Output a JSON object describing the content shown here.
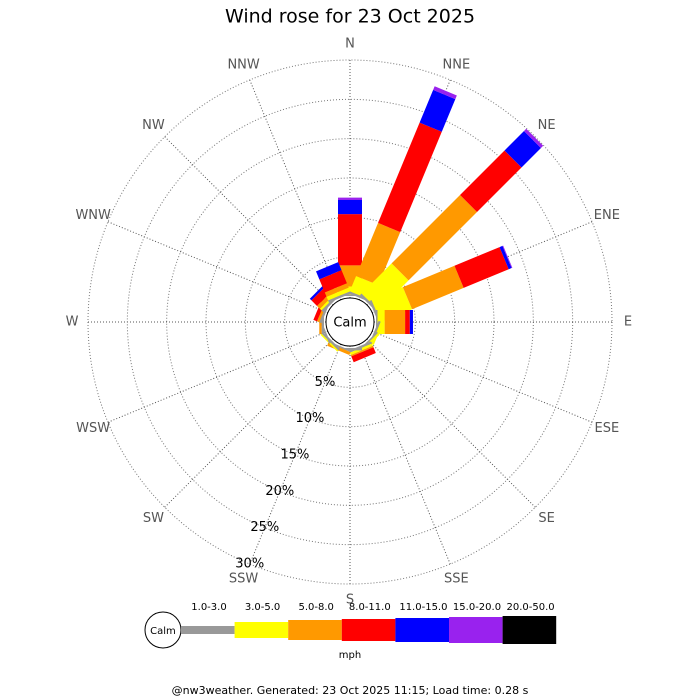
{
  "chart_data": {
    "type": "wind_rose",
    "title": "Wind rose for 23 Oct 2025",
    "categories": [
      "N",
      "NNE",
      "NE",
      "ENE",
      "E",
      "ESE",
      "SE",
      "SSE",
      "S",
      "SSW",
      "SW",
      "WSW",
      "W",
      "WNW",
      "NW",
      "NNW"
    ],
    "center_label": "Calm",
    "rlim": [
      0,
      30
    ],
    "rticks": [
      {
        "value": 5,
        "label": "5%"
      },
      {
        "value": 10,
        "label": "10%"
      },
      {
        "value": 15,
        "label": "15%"
      },
      {
        "value": 20,
        "label": "20%"
      },
      {
        "value": 25,
        "label": "25%"
      },
      {
        "value": 30,
        "label": "30%"
      }
    ],
    "series": [
      {
        "name": "1.0-3.0",
        "color": "#999999",
        "values": [
          0.2,
          0.3,
          0.3,
          0.3,
          0.2,
          0.3,
          0.2,
          0.3,
          0.3,
          0.2,
          0.3,
          0.2,
          0.3,
          0.3,
          0.3,
          0.3
        ]
      },
      {
        "name": "3.0-5.0",
        "color": "#ffff00",
        "values": [
          1.0,
          2.1,
          5.4,
          4.3,
          0.9,
          0.3,
          0.3,
          0.3,
          0,
          0,
          0.2,
          0,
          0,
          0,
          0.3,
          0.5
        ]
      },
      {
        "name": "5.0-8.0",
        "color": "#ff9900",
        "values": [
          2.7,
          7.3,
          12.3,
          7.1,
          2.6,
          0,
          0,
          0.2,
          0,
          0.4,
          0,
          0,
          0.3,
          0.3,
          0.5,
          0.6
        ]
      },
      {
        "name": "8.0-11.0",
        "color": "#ff0000",
        "values": [
          6.5,
          13.8,
          8.0,
          6.2,
          0.6,
          0,
          0,
          0.8,
          0,
          0,
          0,
          0,
          0,
          0.5,
          1.0,
          1.8
        ]
      },
      {
        "name": "11.0-15.0",
        "color": "#0000ff",
        "values": [
          1.8,
          4.5,
          3.5,
          0.4,
          0.4,
          0,
          0,
          0,
          0,
          0,
          0,
          0,
          0,
          0,
          0.3,
          1.1
        ]
      },
      {
        "name": "15.0-20.0",
        "color": "#9922ee",
        "values": [
          0.3,
          0.5,
          0.4,
          0.1,
          0,
          0,
          0,
          0,
          0,
          0,
          0,
          0,
          0,
          0,
          0,
          0
        ]
      },
      {
        "name": "20.0-50.0",
        "color": "#000000",
        "values": [
          0,
          0,
          0,
          0,
          0,
          0,
          0,
          0,
          0,
          0,
          0,
          0,
          0,
          0,
          0,
          0
        ]
      }
    ],
    "legend_unit": "mph",
    "footer": "@nw3weather. Generated: 23 Oct 2025 11:15; Load time: 0.28 s"
  }
}
